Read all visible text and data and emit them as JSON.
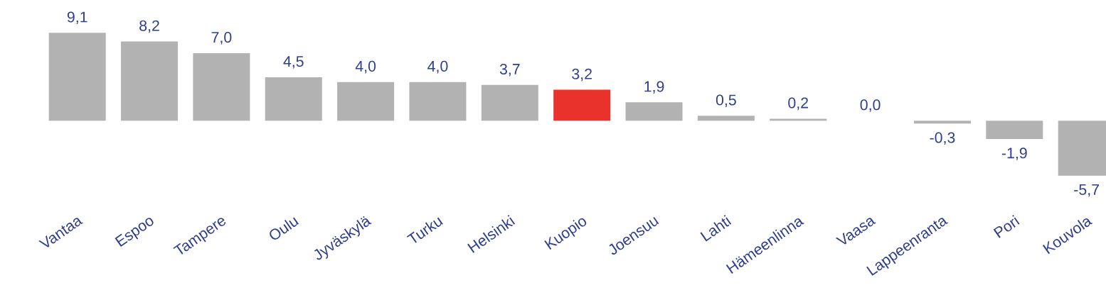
{
  "chart_data": {
    "type": "bar",
    "categories": [
      "Vantaa",
      "Espoo",
      "Tampere",
      "Oulu",
      "Jyväskylä",
      "Turku",
      "Helsinki",
      "Kuopio",
      "Joensuu",
      "Lahti",
      "Hämeenlinna",
      "Vaasa",
      "Lappeenranta",
      "Pori",
      "Kouvola"
    ],
    "values": [
      9.1,
      8.2,
      7.0,
      4.5,
      4.0,
      4.0,
      3.7,
      3.2,
      1.9,
      0.5,
      0.2,
      0.0,
      -0.3,
      -1.9,
      -5.7
    ],
    "colors": [
      "#b2b2b2",
      "#b2b2b2",
      "#b2b2b2",
      "#b2b2b2",
      "#b2b2b2",
      "#b2b2b2",
      "#b2b2b2",
      "#e8322b",
      "#b2b2b2",
      "#b2b2b2",
      "#b2b2b2",
      "#b2b2b2",
      "#b2b2b2",
      "#b2b2b2",
      "#b2b2b2"
    ],
    "value_labels": [
      "9,1",
      "8,2",
      "7,0",
      "4,5",
      "4,0",
      "4,0",
      "3,7",
      "3,2",
      "1,9",
      "0,5",
      "0,2",
      "0,0",
      "-0,3",
      "-1,9",
      "-5,7"
    ]
  }
}
